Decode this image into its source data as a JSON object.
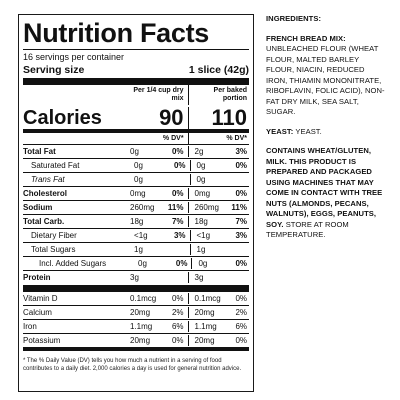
{
  "panel": {
    "title": "Nutrition Facts",
    "servings": "16 servings per container",
    "serving_size_label": "Serving size",
    "serving_size_value": "1 slice (42g)",
    "col1_header": "Per 1/4 cup dry mix",
    "col2_header": "Per baked portion",
    "calories_label": "Calories",
    "calories_col1": "90",
    "calories_col2": "110",
    "dv_header": "% DV*",
    "rows": [
      {
        "label": "Total Fat",
        "a1": "0g",
        "p1": "0%",
        "a2": "2g",
        "p2": "3%"
      },
      {
        "label": "Saturated Fat",
        "a1": "0g",
        "p1": "0%",
        "a2": "0g",
        "p2": "0%"
      },
      {
        "label": "Trans Fat",
        "a1": "0g",
        "p1": "",
        "a2": "0g",
        "p2": ""
      },
      {
        "label": "Cholesterol",
        "a1": "0mg",
        "p1": "0%",
        "a2": "0mg",
        "p2": "0%"
      },
      {
        "label": "Sodium",
        "a1": "260mg",
        "p1": "11%",
        "a2": "260mg",
        "p2": "11%"
      },
      {
        "label": "Total Carb.",
        "a1": "18g",
        "p1": "7%",
        "a2": "18g",
        "p2": "7%"
      },
      {
        "label": "Dietary Fiber",
        "a1": "<1g",
        "p1": "3%",
        "a2": "<1g",
        "p2": "3%"
      },
      {
        "label": "Total Sugars",
        "a1": "1g",
        "p1": "",
        "a2": "1g",
        "p2": ""
      },
      {
        "label": "Incl. Added Sugars",
        "a1": "0g",
        "p1": "0%",
        "a2": "0g",
        "p2": "0%"
      },
      {
        "label": "Protein",
        "a1": "3g",
        "p1": "",
        "a2": "3g",
        "p2": ""
      }
    ],
    "vitamins": [
      {
        "label": "Vitamin D",
        "a1": "0.1mcg",
        "p1": "0%",
        "a2": "0.1mcg",
        "p2": "0%"
      },
      {
        "label": "Calcium",
        "a1": "20mg",
        "p1": "2%",
        "a2": "20mg",
        "p2": "2%"
      },
      {
        "label": "Iron",
        "a1": "1.1mg",
        "p1": "6%",
        "a2": "1.1mg",
        "p2": "6%"
      },
      {
        "label": "Potassium",
        "a1": "20mg",
        "p1": "0%",
        "a2": "20mg",
        "p2": "0%"
      }
    ],
    "footnote": "* The % Daily Value (DV) tells you how much a nutrient in a serving of food contributes to a daily diet. 2,000 calories a day is used for general nutrition advice."
  },
  "ingredients": {
    "heading": "INGREDIENTS:",
    "mix_label": "FRENCH BREAD MIX:",
    "mix_text": "UNBLEACHED FLOUR (WHEAT FLOUR, MALTED BARLEY FLOUR, NIACIN, REDUCED IRON, THIAMIN MONONITRATE, RIBOFLAVIN, FOLIC ACID), NON-FAT DRY MILK, SEA SALT, SUGAR.",
    "yeast_label": "YEAST:",
    "yeast_text": "YEAST.",
    "allergen_bold": "CONTAINS WHEAT/GLUTEN, MILK. THIS PRODUCT IS PREPARED AND PACKAGED USING MACHINES THAT MAY COME IN CONTACT WITH TREE NUTS (ALMONDS, PECANS, WALNUTS), EGGS, PEANUTS, SOY.",
    "storage_text": "STORE AT ROOM TEMPERATURE."
  }
}
